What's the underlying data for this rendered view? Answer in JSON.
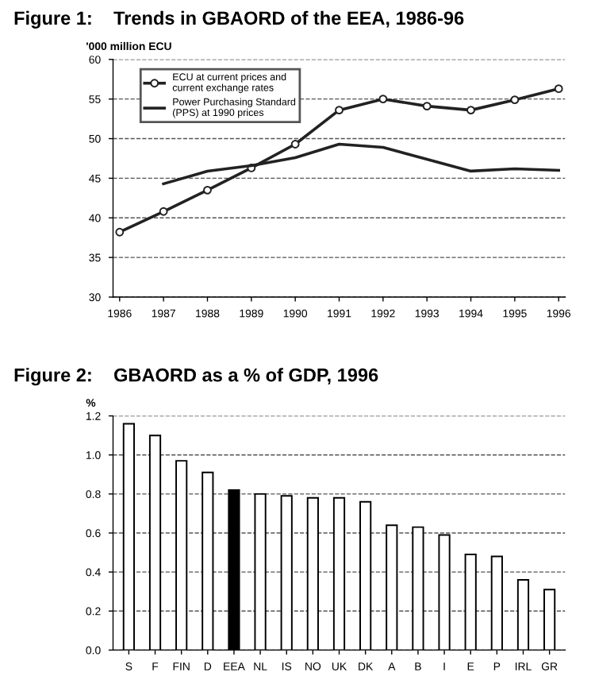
{
  "chart_data": [
    {
      "type": "line",
      "title": "Figure 1:    Trends in GBAORD of the EEA, 1986-96",
      "ylabel": "'000 million ECU",
      "x": [
        1986,
        1987,
        1988,
        1989,
        1990,
        1991,
        1992,
        1993,
        1994,
        1995,
        1996
      ],
      "series": [
        {
          "name": "ECU at current prices and\ncurrent exchange rates",
          "color": "#222222",
          "marker": "circle",
          "values": [
            38.2,
            40.8,
            43.5,
            46.3,
            49.3,
            53.6,
            55.0,
            54.1,
            53.6,
            54.9,
            56.3
          ]
        },
        {
          "name": "Power Purchasing Standard\n(PPS) at 1990 prices",
          "color": "#222222",
          "marker": "none",
          "values": [
            null,
            44.3,
            45.9,
            46.6,
            47.6,
            49.3,
            48.9,
            47.4,
            45.9,
            46.2,
            46.0
          ]
        }
      ],
      "xlim": [
        1985.85,
        1996.15
      ],
      "xticks": [
        1986,
        1987,
        1988,
        1989,
        1990,
        1991,
        1992,
        1993,
        1994,
        1995,
        1996
      ],
      "ylim": [
        30,
        60
      ],
      "yticks": [
        30,
        35,
        40,
        45,
        50,
        55,
        60
      ],
      "grid": "y",
      "legend": "top left",
      "line_style": "solid"
    },
    {
      "type": "bar",
      "title": "Figure 2:    GBAORD as a % of GDP, 1996",
      "ylabel": "%",
      "categories": [
        "S",
        "F",
        "FIN",
        "D",
        "EEA",
        "NL",
        "IS",
        "NO",
        "UK",
        "DK",
        "A",
        "B",
        "I",
        "E",
        "P",
        "IRL",
        "GR"
      ],
      "values": [
        1.16,
        1.1,
        0.97,
        0.91,
        0.82,
        0.8,
        0.79,
        0.78,
        0.78,
        0.76,
        0.64,
        0.63,
        0.59,
        0.49,
        0.48,
        0.36,
        0.31
      ],
      "colors": [
        "#ffffff",
        "#ffffff",
        "#ffffff",
        "#ffffff",
        "#000000",
        "#ffffff",
        "#ffffff",
        "#ffffff",
        "#ffffff",
        "#ffffff",
        "#ffffff",
        "#ffffff",
        "#ffffff",
        "#ffffff",
        "#ffffff",
        "#ffffff",
        "#ffffff"
      ],
      "ylim": [
        0,
        1.2
      ],
      "yticks": [
        {
          "value": 0,
          "label": "0.0"
        },
        0.2,
        0.4,
        0.6,
        0.8,
        {
          "value": 1.0,
          "label": "1.0"
        },
        1.2
      ],
      "grid": "y"
    }
  ]
}
